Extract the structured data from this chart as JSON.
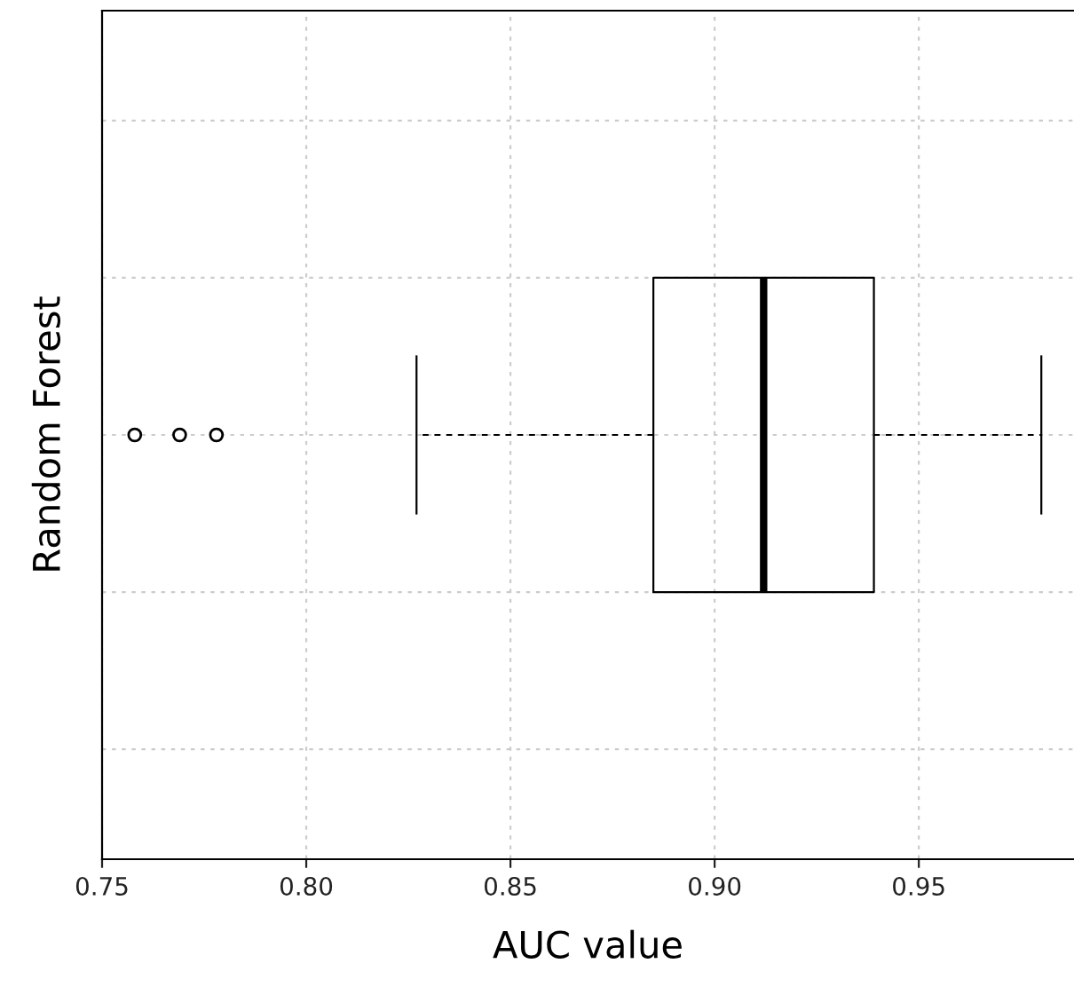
{
  "chart_data": {
    "type": "box",
    "orientation": "horizontal",
    "categories": [
      null
    ],
    "xlabel": "AUC value",
    "ylabel": "Random Forest",
    "boxes": [
      {
        "low": 0.827,
        "q1": 0.885,
        "median": 0.912,
        "q3": 0.939,
        "high": 0.98,
        "outliers": [
          0.758,
          0.769,
          0.778
        ]
      }
    ],
    "xlim": [
      0.75,
      0.988
    ],
    "xticks": [
      {
        "value": 0.75,
        "label": "0.75"
      },
      {
        "value": 0.8,
        "label": "0.80"
      },
      {
        "value": 0.85,
        "label": "0.85"
      },
      {
        "value": 0.9,
        "label": "0.90"
      },
      {
        "value": 0.95,
        "label": "0.95"
      }
    ],
    "tick_labels": "x",
    "grid": true,
    "line_style": "dashed"
  }
}
